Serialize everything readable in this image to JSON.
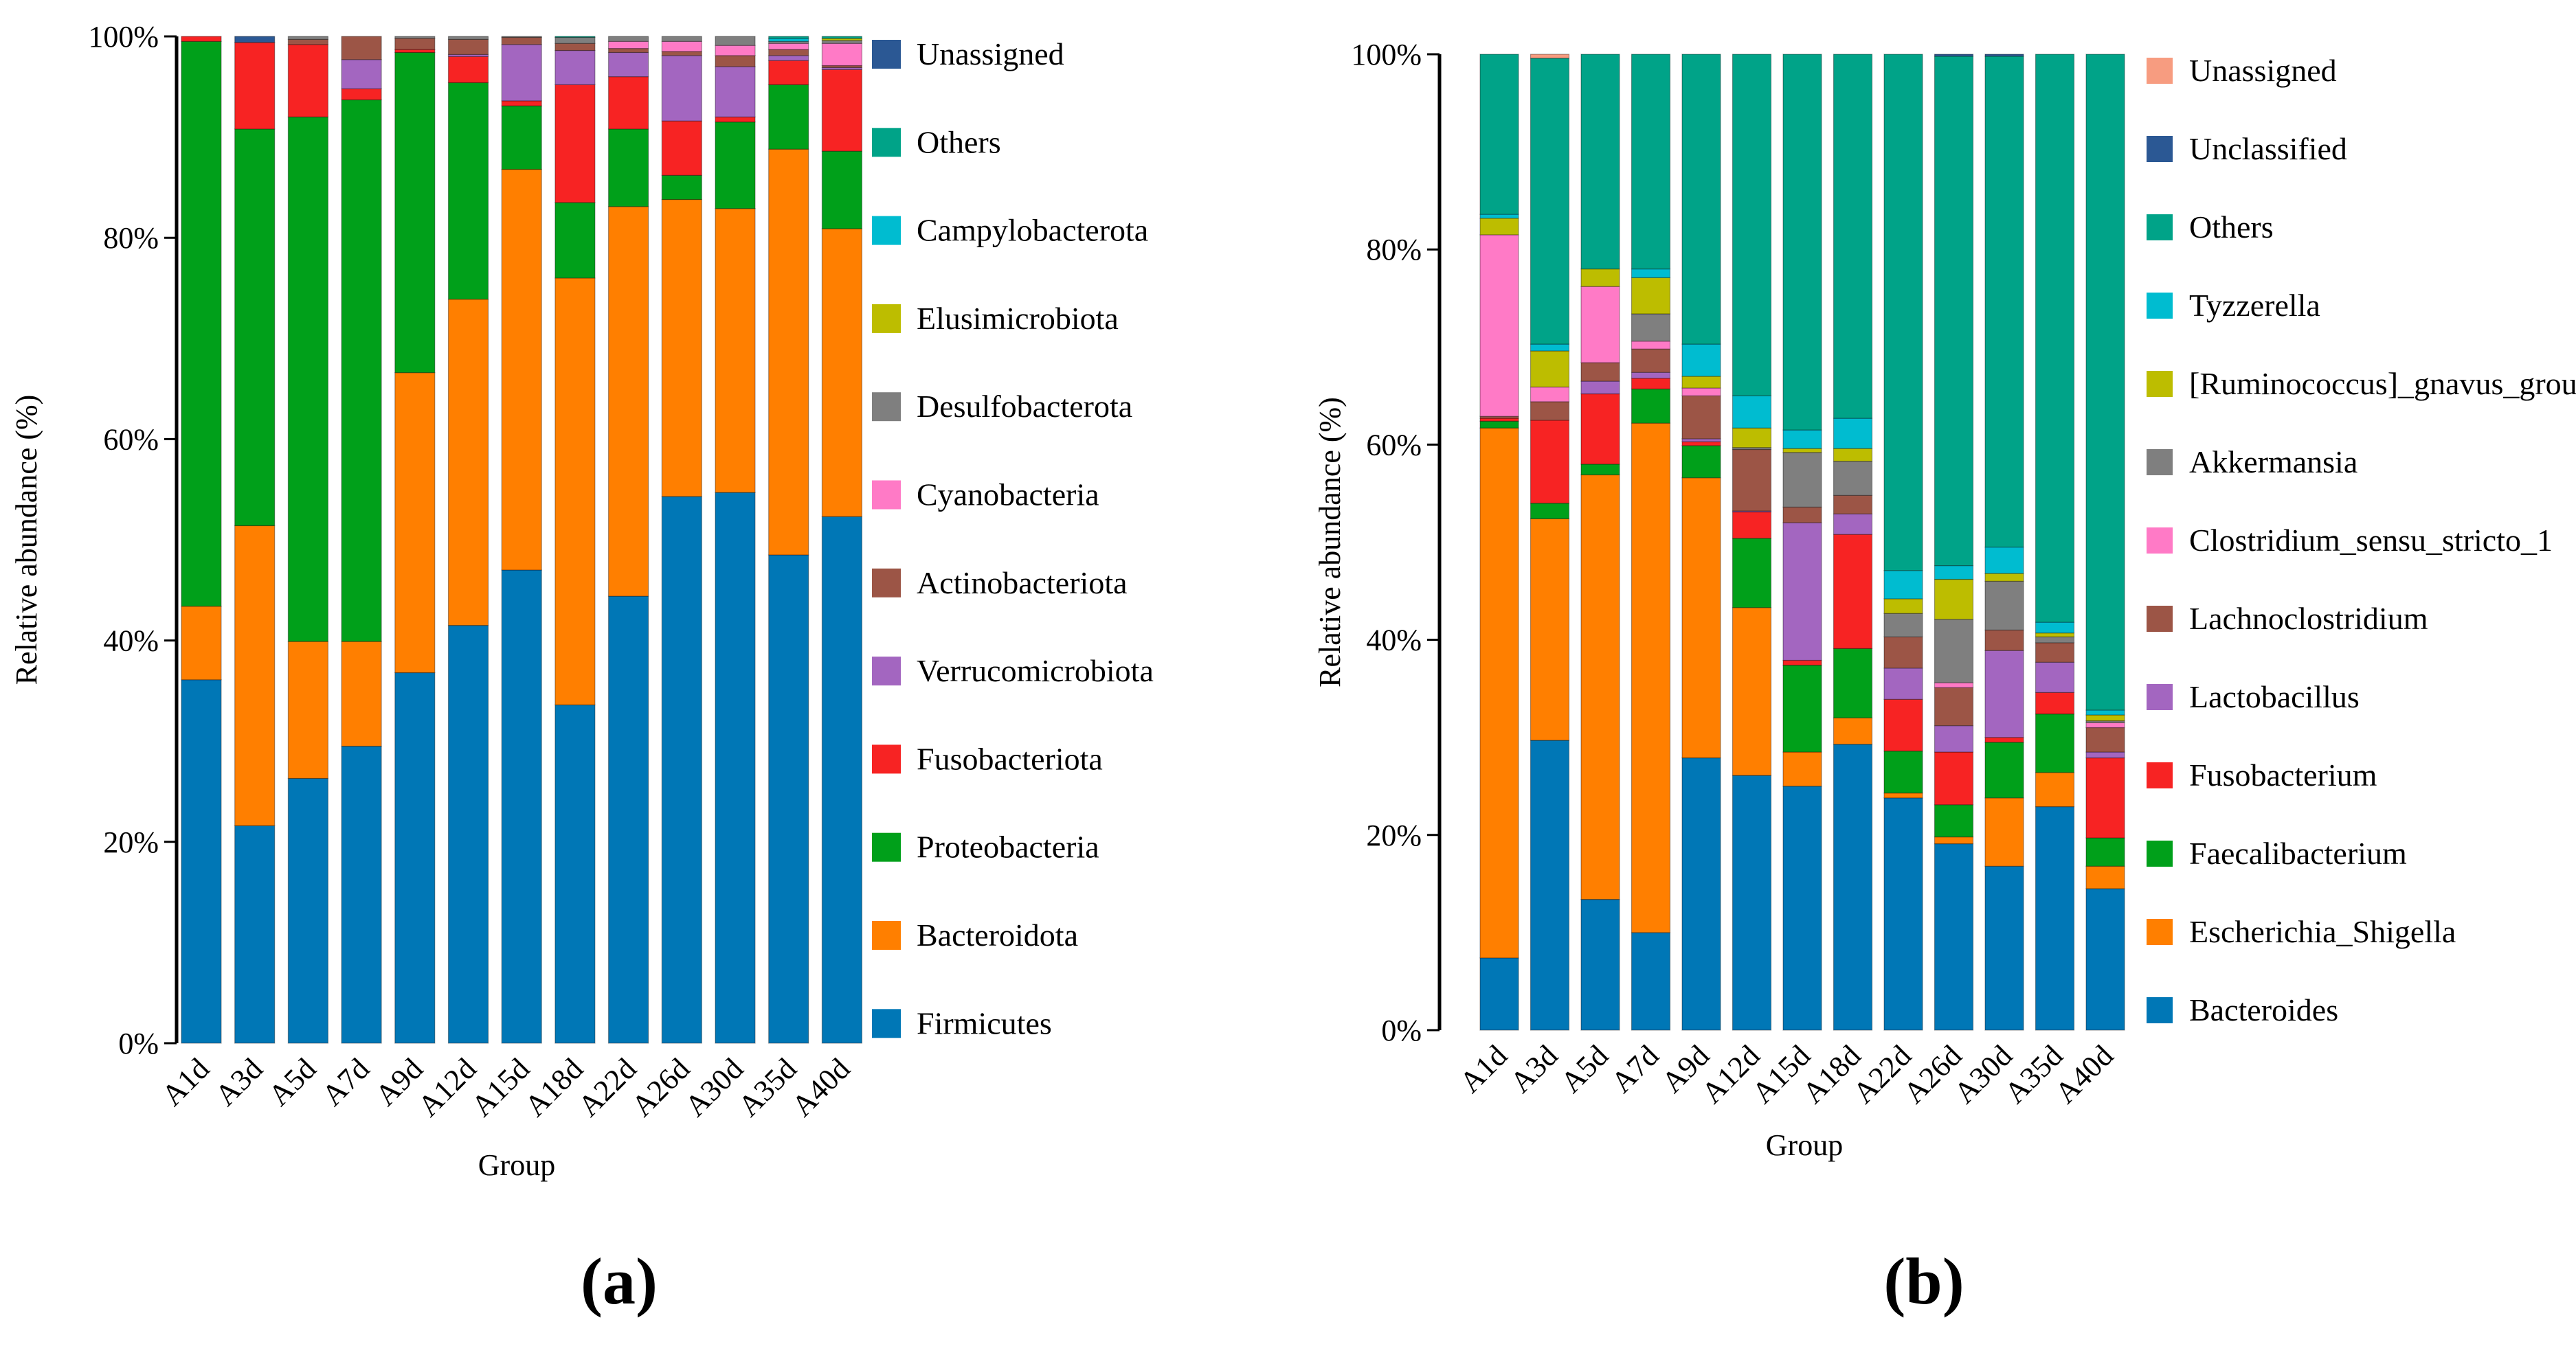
{
  "chart_data": [
    {
      "type": "bar",
      "stacked": true,
      "panel_label": "(a)",
      "xlabel": "Group",
      "ylabel": "Relative abundance (%)",
      "ylim": [
        0,
        100
      ],
      "yticks": [
        "0%",
        "20%",
        "40%",
        "60%",
        "80%",
        "100%"
      ],
      "grid": false,
      "legend_position": "right",
      "categories": [
        "A1d",
        "A3d",
        "A5d",
        "A7d",
        "A9d",
        "A12d",
        "A15d",
        "A18d",
        "A22d",
        "A26d",
        "A30d",
        "A35d",
        "A40d"
      ],
      "series": [
        {
          "name": "Firmicutes",
          "color": "#0077B6",
          "values": [
            36.1,
            21.6,
            26.3,
            29.5,
            36.8,
            41.5,
            47.0,
            33.6,
            44.4,
            54.3,
            54.7,
            48.5,
            52.3
          ]
        },
        {
          "name": "Bacteroidota",
          "color": "#FF7F00",
          "values": [
            7.3,
            29.8,
            13.6,
            10.4,
            29.8,
            32.4,
            39.8,
            42.4,
            38.7,
            29.5,
            28.2,
            40.3,
            28.6
          ]
        },
        {
          "name": "Proteobacteria",
          "color": "#00A01A",
          "values": [
            56.1,
            39.4,
            52.1,
            53.8,
            31.8,
            21.5,
            6.3,
            7.5,
            7.7,
            2.4,
            8.6,
            6.4,
            7.7
          ]
        },
        {
          "name": "Fusobacteriota",
          "color": "#F72323",
          "values": [
            0.5,
            8.6,
            7.2,
            1.1,
            0.3,
            2.6,
            0.5,
            11.7,
            5.2,
            5.4,
            0.5,
            2.4,
            8.1
          ]
        },
        {
          "name": "Verrucomicrobiota",
          "color": "#A366C0",
          "values": [
            0,
            0,
            0,
            2.9,
            0,
            0.2,
            5.6,
            3.4,
            2.4,
            6.5,
            5.0,
            0.5,
            0.2
          ]
        },
        {
          "name": "Actinobacteriota",
          "color": "#9C5546",
          "values": [
            0,
            0,
            0.5,
            2.3,
            1.1,
            1.5,
            0.7,
            0.7,
            0.4,
            0.4,
            1.1,
            0.6,
            0.2
          ]
        },
        {
          "name": "Cyanobacteria",
          "color": "#FF7AC6",
          "values": [
            0,
            0,
            0,
            0,
            0,
            0,
            0,
            0,
            0.7,
            1.0,
            1.0,
            0.6,
            2.2
          ]
        },
        {
          "name": "Desulfobacterota",
          "color": "#7F7F7F",
          "values": [
            0,
            0,
            0.3,
            0,
            0.2,
            0.3,
            0.1,
            0.6,
            0.5,
            0.5,
            0.9,
            0.2,
            0.3
          ]
        },
        {
          "name": "Elusimicrobiota",
          "color": "#BDBD00",
          "values": [
            0,
            0,
            0,
            0,
            0,
            0,
            0,
            0,
            0,
            0,
            0,
            0,
            0.2
          ]
        },
        {
          "name": "Campylobacterota",
          "color": "#00BCD0",
          "values": [
            0,
            0,
            0,
            0,
            0,
            0,
            0,
            0,
            0,
            0,
            0,
            0.3,
            0
          ]
        },
        {
          "name": "Others",
          "color": "#00A388",
          "values": [
            0,
            0,
            0,
            0,
            0,
            0,
            0,
            0.1,
            0,
            0,
            0,
            0.2,
            0.2
          ]
        },
        {
          "name": "Unassigned",
          "color": "#2B5894",
          "values": [
            0,
            0.6,
            0,
            0,
            0,
            0,
            0,
            0,
            0,
            0,
            0,
            0,
            0
          ]
        }
      ]
    },
    {
      "type": "bar",
      "stacked": true,
      "panel_label": "(b)",
      "xlabel": "Group",
      "ylabel": "Relative abundance (%)",
      "ylim": [
        0,
        100
      ],
      "yticks": [
        "0%",
        "20%",
        "40%",
        "60%",
        "80%",
        "100%"
      ],
      "grid": false,
      "legend_position": "right",
      "categories": [
        "A1d",
        "A3d",
        "A5d",
        "A7d",
        "A9d",
        "A12d",
        "A15d",
        "A18d",
        "A22d",
        "A26d",
        "A30d",
        "A35d",
        "A40d"
      ],
      "series": [
        {
          "name": "Bacteroides",
          "color": "#0077B6",
          "values": [
            7.4,
            29.7,
            13.4,
            10.0,
            27.9,
            26.1,
            25.0,
            29.3,
            23.8,
            19.1,
            16.8,
            22.9,
            14.5
          ]
        },
        {
          "name": "Escherichia_Shigella",
          "color": "#FF7F00",
          "values": [
            54.3,
            22.7,
            43.5,
            52.2,
            28.7,
            17.2,
            3.5,
            2.7,
            0.5,
            0.7,
            7.0,
            3.5,
            2.3
          ]
        },
        {
          "name": "Faecalibacterium",
          "color": "#00A01A",
          "values": [
            0.7,
            1.6,
            1.1,
            3.5,
            3.3,
            7.1,
            8.9,
            7.1,
            4.3,
            3.3,
            5.7,
            6.0,
            2.9
          ]
        },
        {
          "name": "Fusobacterium",
          "color": "#F72323",
          "values": [
            0.3,
            8.5,
            7.2,
            1.1,
            0.4,
            2.7,
            0.5,
            11.7,
            5.3,
            5.4,
            0.5,
            2.2,
            8.2
          ]
        },
        {
          "name": "Lactobacillus",
          "color": "#A366C0",
          "values": [
            0,
            0,
            1.3,
            0.6,
            0.3,
            0.1,
            14.1,
            2.1,
            3.2,
            2.7,
            8.9,
            3.1,
            0.6
          ]
        },
        {
          "name": "Lachnoclostridium",
          "color": "#9C5546",
          "values": [
            0.2,
            1.9,
            1.9,
            2.4,
            4.4,
            6.3,
            1.6,
            1.9,
            3.2,
            3.9,
            2.1,
            2.0,
            2.5
          ]
        },
        {
          "name": "Clostridium_sensu_stricto_1",
          "color": "#FF7AC6",
          "values": [
            18.6,
            1.5,
            7.8,
            0.8,
            0.8,
            0,
            0,
            0,
            0,
            0.5,
            0,
            0,
            0.5
          ]
        },
        {
          "name": "Akkermansia",
          "color": "#7F7F7F",
          "values": [
            0,
            0,
            0,
            2.8,
            0,
            0.2,
            5.6,
            3.5,
            2.4,
            6.5,
            5.0,
            0.6,
            0.2
          ]
        },
        {
          "name": "[Ruminococcus]_gnavus_group",
          "color": "#BDBD00",
          "values": [
            1.7,
            3.7,
            1.8,
            3.7,
            1.2,
            2.0,
            0.4,
            1.3,
            1.5,
            4.1,
            0.8,
            0.4,
            0.6
          ]
        },
        {
          "name": "Tyzzerella",
          "color": "#00BCD0",
          "values": [
            0.4,
            0.7,
            0,
            0.9,
            3.3,
            3.3,
            1.9,
            3.1,
            2.9,
            1.4,
            2.7,
            1.1,
            0.5
          ]
        },
        {
          "name": "Others",
          "color": "#00A388",
          "values": [
            16.4,
            29.3,
            22.0,
            22.0,
            29.7,
            35.0,
            38.5,
            37.3,
            52.9,
            52.2,
            50.3,
            58.2,
            67.2
          ]
        },
        {
          "name": "Unclassified",
          "color": "#2B5894",
          "values": [
            0,
            0,
            0,
            0,
            0,
            0,
            0,
            0,
            0,
            0.2,
            0.2,
            0,
            0
          ]
        },
        {
          "name": "Unassigned",
          "color": "#F79C80",
          "values": [
            0,
            0.4,
            0,
            0,
            0,
            0,
            0,
            0,
            0,
            0,
            0,
            0,
            0
          ]
        }
      ]
    }
  ]
}
